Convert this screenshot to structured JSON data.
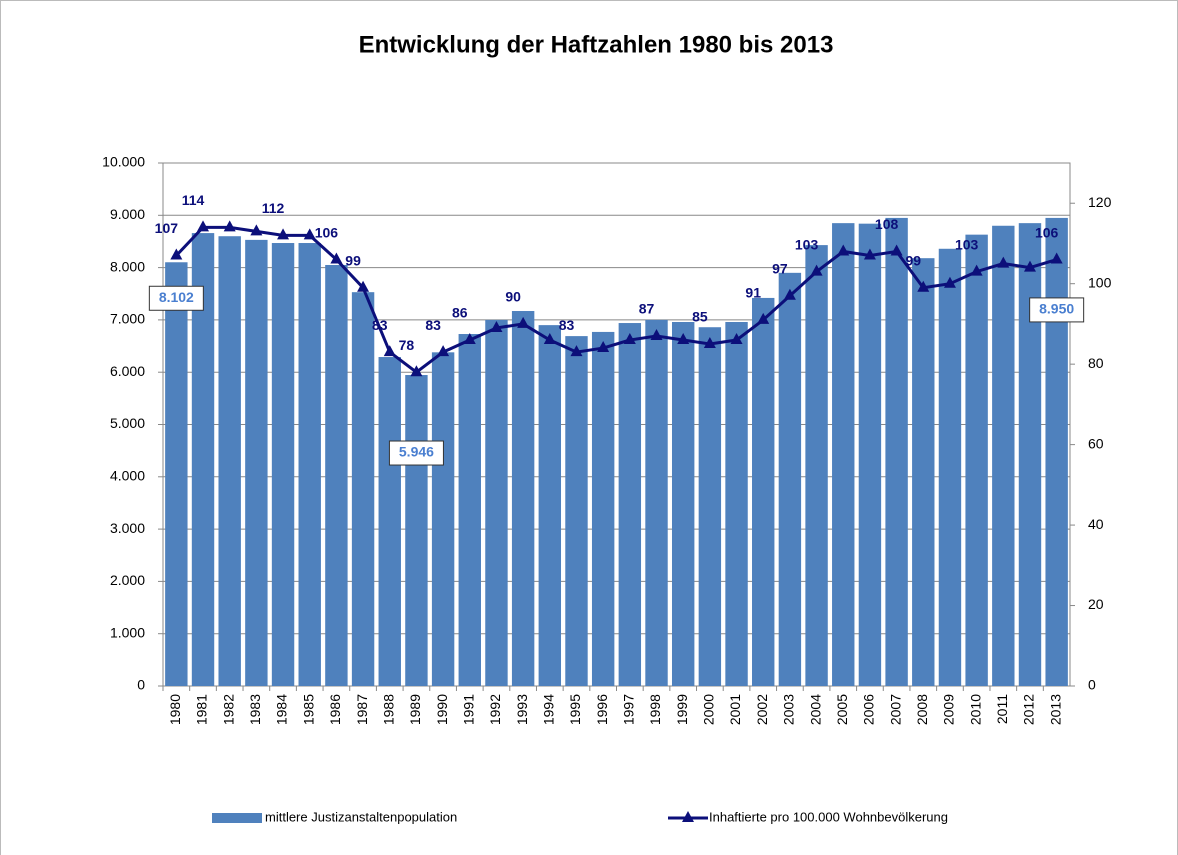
{
  "chart_data": {
    "type": "bar-line",
    "title": "Entwicklung der Haftzahlen 1980 bis 2013",
    "categories": [
      "1980",
      "1981",
      "1982",
      "1983",
      "1984",
      "1985",
      "1986",
      "1987",
      "1988",
      "1989",
      "1990",
      "1991",
      "1992",
      "1993",
      "1994",
      "1995",
      "1996",
      "1997",
      "1998",
      "1999",
      "2000",
      "2001",
      "2002",
      "2003",
      "2004",
      "2005",
      "2006",
      "2007",
      "2008",
      "2009",
      "2010",
      "2011",
      "2012",
      "2013"
    ],
    "series": [
      {
        "name": "mittlere Justizanstaltenpopulation",
        "type": "bar",
        "color": "#4f81bd",
        "values": [
          8102,
          8660,
          8600,
          8530,
          8470,
          8470,
          8050,
          7530,
          6290,
          5946,
          6380,
          6730,
          7000,
          7170,
          6900,
          6690,
          6770,
          6940,
          7000,
          6960,
          6860,
          6960,
          7420,
          7900,
          8430,
          8850,
          8840,
          8950,
          8180,
          8360,
          8630,
          8800,
          8850,
          8950
        ],
        "value_labels": [
          "8.102",
          null,
          null,
          null,
          null,
          null,
          null,
          null,
          null,
          "5.946",
          null,
          null,
          null,
          null,
          null,
          null,
          null,
          null,
          null,
          null,
          null,
          null,
          null,
          null,
          null,
          null,
          null,
          null,
          null,
          null,
          null,
          null,
          null,
          "8.950"
        ]
      },
      {
        "name": "Inhaftierte pro 100.000 Wohnbevölkerung",
        "type": "line",
        "axis": "y2",
        "color": "#0c0f7a",
        "values": [
          107,
          114,
          114,
          113,
          112,
          112,
          106,
          99,
          83,
          78,
          83,
          86,
          89,
          90,
          86,
          83,
          84,
          86,
          87,
          86,
          85,
          86,
          91,
          97,
          103,
          108,
          107,
          108,
          99,
          100,
          103,
          105,
          104,
          106
        ],
        "value_labels": [
          "107",
          "114",
          null,
          null,
          "112",
          null,
          "106",
          "99",
          "83",
          "78",
          "83",
          "86",
          null,
          "90",
          null,
          "83",
          null,
          null,
          "87",
          null,
          "85",
          null,
          "91",
          "97",
          "103",
          null,
          null,
          "108",
          "99",
          null,
          "103",
          null,
          null,
          "106"
        ]
      }
    ],
    "ylim": [
      0,
      10000
    ],
    "yticks": [
      0,
      {
        "value": 1000,
        "label": "1.000"
      },
      {
        "value": 2000,
        "label": "2.000"
      },
      {
        "value": 3000,
        "label": "3.000"
      },
      {
        "value": 4000,
        "label": "4.000"
      },
      {
        "value": 5000,
        "label": "5.000"
      },
      {
        "value": 6000,
        "label": "6.000"
      },
      {
        "value": 7000,
        "label": "7.000"
      },
      {
        "value": 8000,
        "label": "8.000"
      },
      {
        "value": 9000,
        "label": "9.000"
      },
      {
        "value": 10000,
        "label": "10.000"
      }
    ],
    "y2lim": [
      0,
      130
    ],
    "y2ticks": [
      0,
      20,
      40,
      60,
      80,
      100,
      120
    ],
    "grid": true,
    "legend": "bottom"
  }
}
